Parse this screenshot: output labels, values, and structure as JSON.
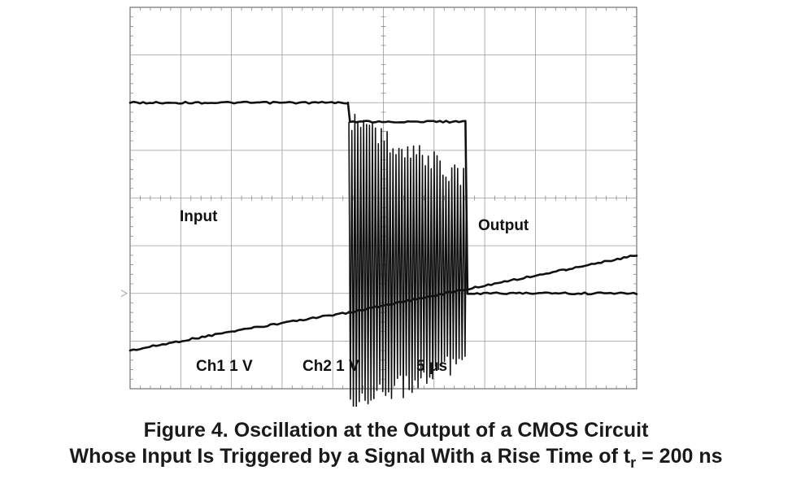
{
  "chart_data": {
    "type": "line",
    "title": "",
    "xlabel": "",
    "ylabel": "",
    "xlim": [
      0,
      50
    ],
    "ylim": [
      -4,
      4
    ],
    "grid": true,
    "x_divisions": 10,
    "y_divisions": 8,
    "minor_ticks_per_division": 5,
    "series": [
      {
        "name": "Input",
        "color": "#111111",
        "x": [
          0,
          10,
          21.6,
          43,
          50
        ],
        "y": [
          -3.2,
          -2.8,
          -2.4,
          -1.5,
          -1.2
        ]
      },
      {
        "name": "Output",
        "color": "#111111",
        "x": [
          0,
          21.5,
          21.7,
          33.1,
          33.3,
          50
        ],
        "y": [
          2.0,
          2.0,
          1.6,
          1.6,
          -2.0,
          -2.0
        ]
      }
    ],
    "oscillation": {
      "x_start": 21.6,
      "x_end": 33.2,
      "upper_start": 1.6,
      "upper_end": 0.4,
      "lower_start": -4.4,
      "lower_end": -3.4,
      "cycles": 40
    },
    "annotations": {
      "input_label": "Input",
      "output_label": "Output",
      "ch1": "Ch1 1 V",
      "ch2": "Ch2 1 V",
      "timebase": "5 μs"
    },
    "ground_marker_y": -2.0
  },
  "caption": {
    "line1": "Figure 4.  Oscillation at the Output of a CMOS Circuit",
    "line2_main": "Whose Input Is Triggered by a Signal With a Rise Time of t",
    "line2_sub": "r",
    "line2_tail": " = 200 ns"
  }
}
